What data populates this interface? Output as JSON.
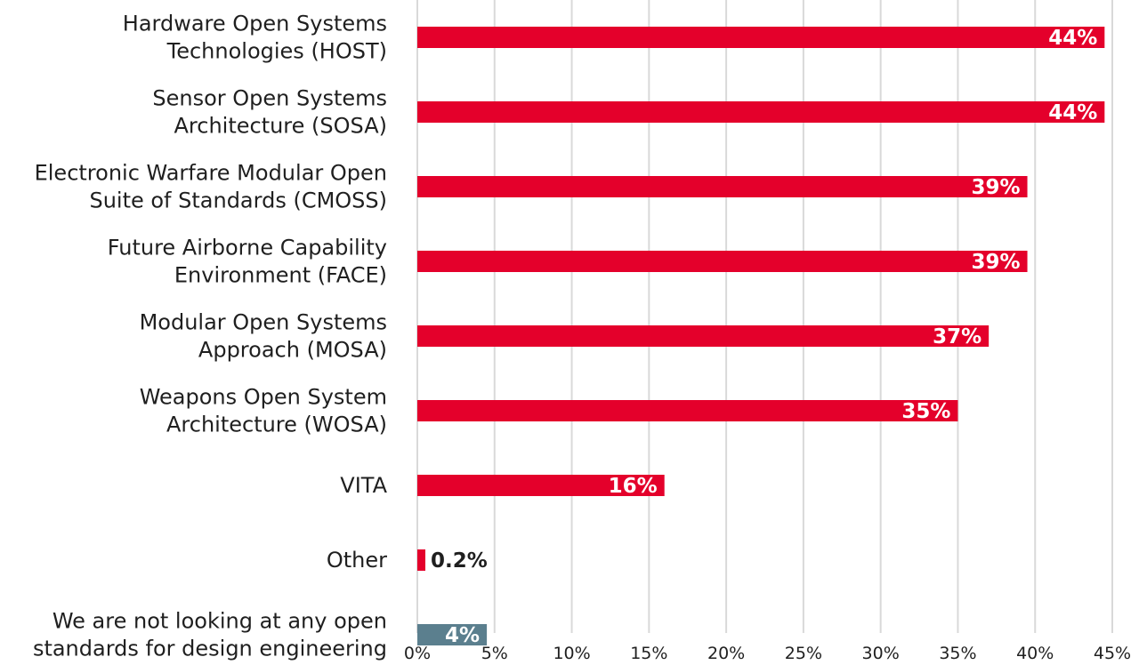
{
  "chart_data": {
    "type": "bar",
    "orientation": "horizontal",
    "categories": [
      [
        "Hardware Open Systems",
        "Technologies (HOST)"
      ],
      [
        "Sensor Open Systems",
        "Architecture (SOSA)"
      ],
      [
        "Electronic Warfare Modular Open",
        "Suite of Standards (CMOSS)"
      ],
      [
        "Future Airborne Capability",
        "Environment (FACE)"
      ],
      [
        "Modular Open Systems",
        "Approach (MOSA)"
      ],
      [
        "Weapons Open System",
        "Architecture (WOSA)"
      ],
      [
        "VITA"
      ],
      [
        "Other"
      ],
      [
        "We are not looking at any open",
        "standards for design engineering"
      ]
    ],
    "values": [
      44.5,
      44.5,
      39.5,
      39.5,
      37,
      35,
      16,
      0.2,
      4.5
    ],
    "value_labels": [
      "44%",
      "44%",
      "39%",
      "39%",
      "37%",
      "35%",
      "16%",
      "0.2%",
      "4%"
    ],
    "bar_colors": [
      "#e4002b",
      "#e4002b",
      "#e4002b",
      "#e4002b",
      "#e4002b",
      "#e4002b",
      "#e4002b",
      "#e4002b",
      "#5b7f8e"
    ],
    "xlim": [
      0,
      45
    ],
    "x_ticks": [
      "0%",
      "5%",
      "10%",
      "15%",
      "20%",
      "25%",
      "30%",
      "35%",
      "40%",
      "45%"
    ],
    "x_tick_values": [
      0,
      5,
      10,
      15,
      20,
      25,
      30,
      35,
      40,
      45
    ],
    "grid": true,
    "title": "",
    "xlabel": "",
    "ylabel": ""
  }
}
